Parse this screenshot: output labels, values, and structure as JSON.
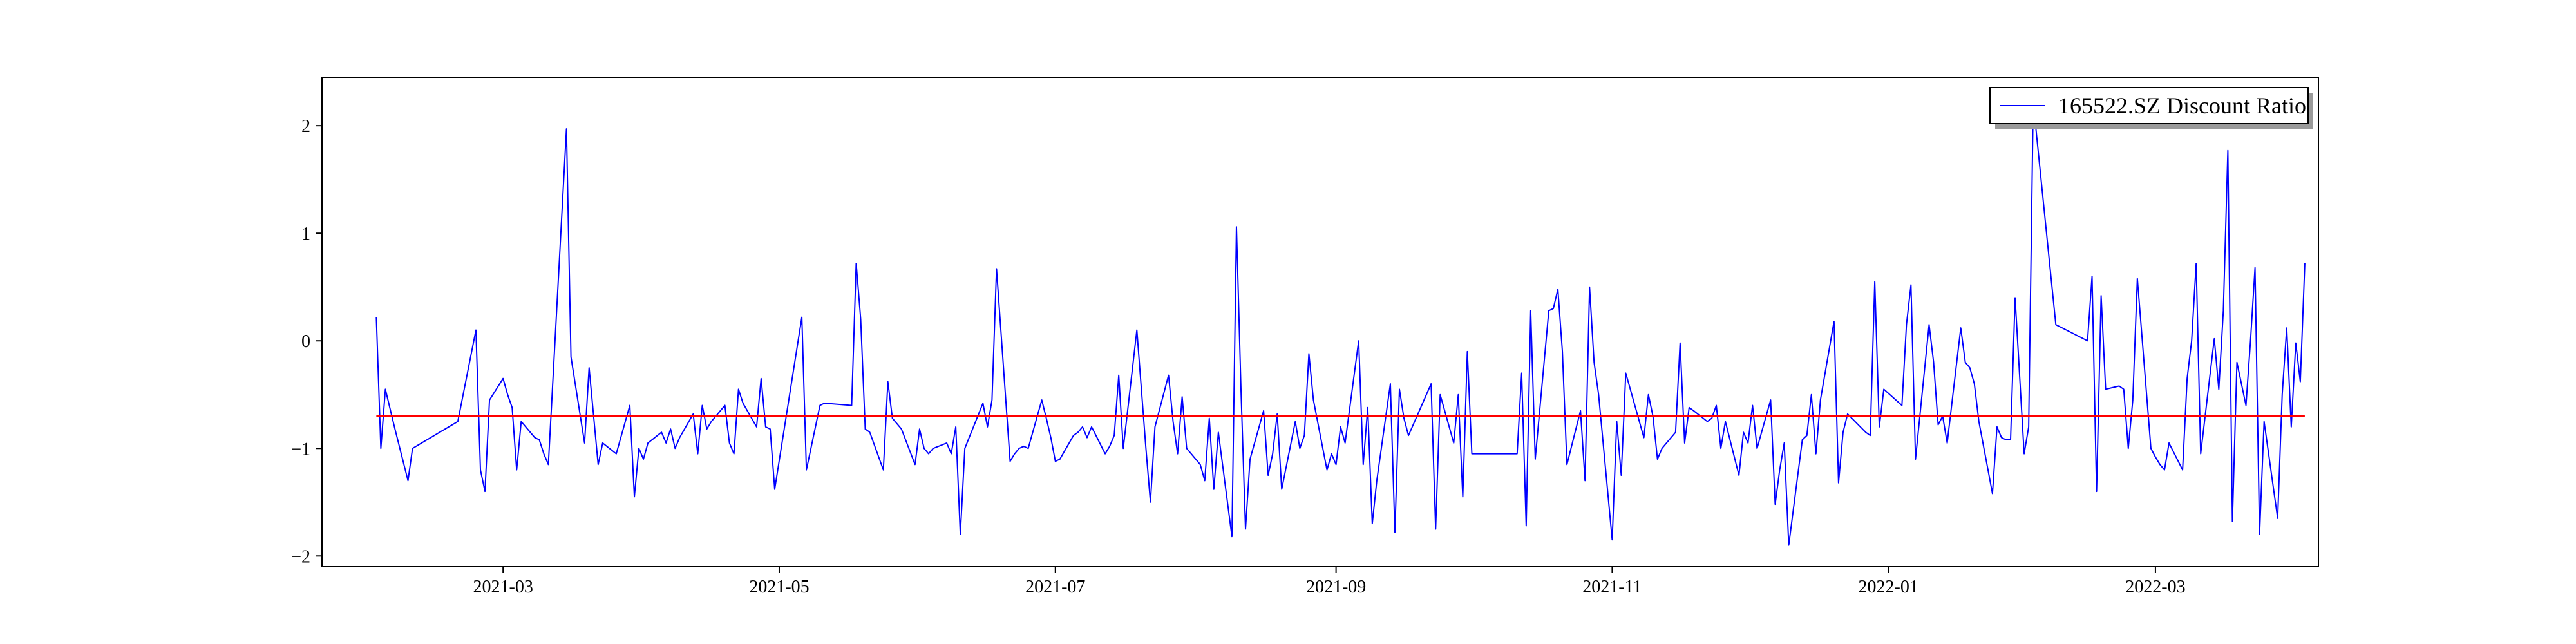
{
  "chart_data": {
    "type": "line",
    "title": "",
    "xlabel": "",
    "ylabel": "",
    "xlim": [
      "2021-01-20",
      "2022-04-06"
    ],
    "ylim": [
      -2.1,
      2.45
    ],
    "x_ticks": [
      "2021-03",
      "2021-05",
      "2021-07",
      "2021-09",
      "2021-11",
      "2022-01",
      "2022-03"
    ],
    "y_ticks": [
      -2,
      -1,
      0,
      1,
      2
    ],
    "grid": false,
    "legend": {
      "position": "top-right",
      "entries": [
        "165522.SZ Discount Ratio"
      ]
    },
    "series": [
      {
        "name": "165522.SZ Discount Ratio",
        "color": "#0000ff",
        "points": [
          [
            "2021-02-01",
            0.22
          ],
          [
            "2021-02-02",
            -1.0
          ],
          [
            "2021-02-03",
            -0.45
          ],
          [
            "2021-02-05",
            -0.8
          ],
          [
            "2021-02-08",
            -1.3
          ],
          [
            "2021-02-09",
            -1.0
          ],
          [
            "2021-02-19",
            -0.75
          ],
          [
            "2021-02-23",
            0.1
          ],
          [
            "2021-02-24",
            -1.2
          ],
          [
            "2021-02-25",
            -1.4
          ],
          [
            "2021-02-26",
            -0.55
          ],
          [
            "2021-03-01",
            -0.35
          ],
          [
            "2021-03-02",
            -0.5
          ],
          [
            "2021-03-03",
            -0.62
          ],
          [
            "2021-03-04",
            -1.2
          ],
          [
            "2021-03-05",
            -0.75
          ],
          [
            "2021-03-08",
            -0.9
          ],
          [
            "2021-03-09",
            -0.92
          ],
          [
            "2021-03-10",
            -1.05
          ],
          [
            "2021-03-11",
            -1.15
          ],
          [
            "2021-03-15",
            1.97
          ],
          [
            "2021-03-16",
            -0.15
          ],
          [
            "2021-03-19",
            -0.95
          ],
          [
            "2021-03-20",
            -0.25
          ],
          [
            "2021-03-22",
            -1.15
          ],
          [
            "2021-03-23",
            -0.95
          ],
          [
            "2021-03-26",
            -1.05
          ],
          [
            "2021-03-29",
            -0.6
          ],
          [
            "2021-03-30",
            -1.45
          ],
          [
            "2021-03-31",
            -1.0
          ],
          [
            "2021-04-01",
            -1.1
          ],
          [
            "2021-04-02",
            -0.95
          ],
          [
            "2021-04-05",
            -0.85
          ],
          [
            "2021-04-06",
            -0.95
          ],
          [
            "2021-04-07",
            -0.82
          ],
          [
            "2021-04-08",
            -1.0
          ],
          [
            "2021-04-09",
            -0.9
          ],
          [
            "2021-04-12",
            -0.68
          ],
          [
            "2021-04-13",
            -1.05
          ],
          [
            "2021-04-14",
            -0.6
          ],
          [
            "2021-04-15",
            -0.82
          ],
          [
            "2021-04-16",
            -0.75
          ],
          [
            "2021-04-19",
            -0.6
          ],
          [
            "2021-04-20",
            -0.95
          ],
          [
            "2021-04-21",
            -1.05
          ],
          [
            "2021-04-22",
            -0.45
          ],
          [
            "2021-04-23",
            -0.58
          ],
          [
            "2021-04-26",
            -0.8
          ],
          [
            "2021-04-27",
            -0.35
          ],
          [
            "2021-04-28",
            -0.8
          ],
          [
            "2021-04-29",
            -0.82
          ],
          [
            "2021-04-30",
            -1.38
          ],
          [
            "2021-05-06",
            0.22
          ],
          [
            "2021-05-07",
            -1.2
          ],
          [
            "2021-05-10",
            -0.6
          ],
          [
            "2021-05-11",
            -0.58
          ],
          [
            "2021-05-17",
            -0.6
          ],
          [
            "2021-05-18",
            0.72
          ],
          [
            "2021-05-19",
            0.2
          ],
          [
            "2021-05-20",
            -0.82
          ],
          [
            "2021-05-21",
            -0.85
          ],
          [
            "2021-05-24",
            -1.2
          ],
          [
            "2021-05-25",
            -0.38
          ],
          [
            "2021-05-26",
            -0.72
          ],
          [
            "2021-05-28",
            -0.82
          ],
          [
            "2021-05-31",
            -1.15
          ],
          [
            "2021-06-01",
            -0.82
          ],
          [
            "2021-06-02",
            -1.0
          ],
          [
            "2021-06-03",
            -1.05
          ],
          [
            "2021-06-04",
            -1.0
          ],
          [
            "2021-06-07",
            -0.95
          ],
          [
            "2021-06-08",
            -1.05
          ],
          [
            "2021-06-09",
            -0.8
          ],
          [
            "2021-06-10",
            -1.8
          ],
          [
            "2021-06-11",
            -1.0
          ],
          [
            "2021-06-15",
            -0.58
          ],
          [
            "2021-06-16",
            -0.8
          ],
          [
            "2021-06-17",
            -0.55
          ],
          [
            "2021-06-18",
            0.67
          ],
          [
            "2021-06-21",
            -1.12
          ],
          [
            "2021-06-22",
            -1.05
          ],
          [
            "2021-06-23",
            -1.0
          ],
          [
            "2021-06-24",
            -0.98
          ],
          [
            "2021-06-25",
            -1.0
          ],
          [
            "2021-06-28",
            -0.55
          ],
          [
            "2021-06-29",
            -0.72
          ],
          [
            "2021-06-30",
            -0.9
          ],
          [
            "2021-07-01",
            -1.12
          ],
          [
            "2021-07-02",
            -1.1
          ],
          [
            "2021-07-05",
            -0.88
          ],
          [
            "2021-07-06",
            -0.85
          ],
          [
            "2021-07-07",
            -0.8
          ],
          [
            "2021-07-08",
            -0.9
          ],
          [
            "2021-07-09",
            -0.8
          ],
          [
            "2021-07-12",
            -1.05
          ],
          [
            "2021-07-13",
            -0.98
          ],
          [
            "2021-07-14",
            -0.88
          ],
          [
            "2021-07-15",
            -0.32
          ],
          [
            "2021-07-16",
            -1.0
          ],
          [
            "2021-07-19",
            0.1
          ],
          [
            "2021-07-20",
            -0.45
          ],
          [
            "2021-07-21",
            -1.0
          ],
          [
            "2021-07-22",
            -1.5
          ],
          [
            "2021-07-23",
            -0.8
          ],
          [
            "2021-07-26",
            -0.32
          ],
          [
            "2021-07-27",
            -0.75
          ],
          [
            "2021-07-28",
            -1.05
          ],
          [
            "2021-07-29",
            -0.52
          ],
          [
            "2021-07-30",
            -1.0
          ],
          [
            "2021-08-02",
            -1.15
          ],
          [
            "2021-08-03",
            -1.3
          ],
          [
            "2021-08-04",
            -0.72
          ],
          [
            "2021-08-05",
            -1.38
          ],
          [
            "2021-08-06",
            -0.85
          ],
          [
            "2021-08-09",
            -1.82
          ],
          [
            "2021-08-10",
            1.06
          ],
          [
            "2021-08-11",
            -0.45
          ],
          [
            "2021-08-12",
            -1.75
          ],
          [
            "2021-08-13",
            -1.1
          ],
          [
            "2021-08-16",
            -0.65
          ],
          [
            "2021-08-17",
            -1.25
          ],
          [
            "2021-08-18",
            -1.05
          ],
          [
            "2021-08-19",
            -0.68
          ],
          [
            "2021-08-20",
            -1.38
          ],
          [
            "2021-08-23",
            -0.75
          ],
          [
            "2021-08-24",
            -1.0
          ],
          [
            "2021-08-25",
            -0.88
          ],
          [
            "2021-08-26",
            -0.12
          ],
          [
            "2021-08-27",
            -0.55
          ],
          [
            "2021-08-30",
            -1.2
          ],
          [
            "2021-08-31",
            -1.05
          ],
          [
            "2021-09-01",
            -1.15
          ],
          [
            "2021-09-02",
            -0.8
          ],
          [
            "2021-09-03",
            -0.95
          ],
          [
            "2021-09-06",
            0.0
          ],
          [
            "2021-09-07",
            -1.15
          ],
          [
            "2021-09-08",
            -0.62
          ],
          [
            "2021-09-09",
            -1.7
          ],
          [
            "2021-09-10",
            -1.3
          ],
          [
            "2021-09-13",
            -0.4
          ],
          [
            "2021-09-14",
            -1.78
          ],
          [
            "2021-09-15",
            -0.45
          ],
          [
            "2021-09-16",
            -0.72
          ],
          [
            "2021-09-17",
            -0.88
          ],
          [
            "2021-09-22",
            -0.4
          ],
          [
            "2021-09-23",
            -1.75
          ],
          [
            "2021-09-24",
            -0.5
          ],
          [
            "2021-09-27",
            -0.95
          ],
          [
            "2021-09-28",
            -0.5
          ],
          [
            "2021-09-29",
            -1.45
          ],
          [
            "2021-09-30",
            -0.1
          ],
          [
            "2021-10-01",
            -1.05
          ],
          [
            "2021-10-11",
            -1.05
          ],
          [
            "2021-10-12",
            -0.3
          ],
          [
            "2021-10-13",
            -1.72
          ],
          [
            "2021-10-14",
            0.28
          ],
          [
            "2021-10-15",
            -1.1
          ],
          [
            "2021-10-18",
            0.28
          ],
          [
            "2021-10-19",
            0.3
          ],
          [
            "2021-10-20",
            0.48
          ],
          [
            "2021-10-21",
            -0.1
          ],
          [
            "2021-10-22",
            -1.15
          ],
          [
            "2021-10-25",
            -0.65
          ],
          [
            "2021-10-26",
            -1.3
          ],
          [
            "2021-10-27",
            0.5
          ],
          [
            "2021-10-28",
            -0.2
          ],
          [
            "2021-10-29",
            -0.5
          ],
          [
            "2021-11-01",
            -1.85
          ],
          [
            "2021-11-02",
            -0.75
          ],
          [
            "2021-11-03",
            -1.25
          ],
          [
            "2021-11-04",
            -0.3
          ],
          [
            "2021-11-05",
            -0.45
          ],
          [
            "2021-11-08",
            -0.9
          ],
          [
            "2021-11-09",
            -0.5
          ],
          [
            "2021-11-10",
            -0.7
          ],
          [
            "2021-11-11",
            -1.1
          ],
          [
            "2021-11-12",
            -1.0
          ],
          [
            "2021-11-15",
            -0.85
          ],
          [
            "2021-11-16",
            -0.02
          ],
          [
            "2021-11-17",
            -0.95
          ],
          [
            "2021-11-18",
            -0.62
          ],
          [
            "2021-11-19",
            -0.65
          ],
          [
            "2021-11-22",
            -0.75
          ],
          [
            "2021-11-23",
            -0.72
          ],
          [
            "2021-11-24",
            -0.6
          ],
          [
            "2021-11-25",
            -1.0
          ],
          [
            "2021-11-26",
            -0.75
          ],
          [
            "2021-11-29",
            -1.25
          ],
          [
            "2021-11-30",
            -0.85
          ],
          [
            "2021-12-01",
            -0.95
          ],
          [
            "2021-12-02",
            -0.6
          ],
          [
            "2021-12-03",
            -1.0
          ],
          [
            "2021-12-06",
            -0.55
          ],
          [
            "2021-12-07",
            -1.52
          ],
          [
            "2021-12-08",
            -1.2
          ],
          [
            "2021-12-09",
            -0.95
          ],
          [
            "2021-12-10",
            -1.9
          ],
          [
            "2021-12-13",
            -0.92
          ],
          [
            "2021-12-14",
            -0.88
          ],
          [
            "2021-12-15",
            -0.5
          ],
          [
            "2021-12-16",
            -1.05
          ],
          [
            "2021-12-17",
            -0.55
          ],
          [
            "2021-12-20",
            0.18
          ],
          [
            "2021-12-21",
            -1.32
          ],
          [
            "2021-12-22",
            -0.85
          ],
          [
            "2021-12-23",
            -0.68
          ],
          [
            "2021-12-27",
            -0.85
          ],
          [
            "2021-12-28",
            -0.88
          ],
          [
            "2021-12-29",
            0.55
          ],
          [
            "2021-12-30",
            -0.8
          ],
          [
            "2021-12-31",
            -0.45
          ],
          [
            "2022-01-04",
            -0.6
          ],
          [
            "2022-01-05",
            0.15
          ],
          [
            "2022-01-06",
            0.52
          ],
          [
            "2022-01-07",
            -1.1
          ],
          [
            "2022-01-10",
            0.15
          ],
          [
            "2022-01-11",
            -0.2
          ],
          [
            "2022-01-12",
            -0.78
          ],
          [
            "2022-01-13",
            -0.7
          ],
          [
            "2022-01-14",
            -0.95
          ],
          [
            "2022-01-17",
            0.12
          ],
          [
            "2022-01-18",
            -0.2
          ],
          [
            "2022-01-19",
            -0.25
          ],
          [
            "2022-01-20",
            -0.4
          ],
          [
            "2022-01-21",
            -0.75
          ],
          [
            "2022-01-24",
            -1.42
          ],
          [
            "2022-01-25",
            -0.8
          ],
          [
            "2022-01-26",
            -0.9
          ],
          [
            "2022-01-27",
            -0.92
          ],
          [
            "2022-01-28",
            -0.92
          ],
          [
            "2022-01-29",
            0.4
          ],
          [
            "2022-01-31",
            -1.05
          ],
          [
            "2022-02-01",
            -0.8
          ],
          [
            "2022-02-02",
            2.22
          ],
          [
            "2022-02-07",
            0.15
          ],
          [
            "2022-02-14",
            0.0
          ],
          [
            "2022-02-15",
            0.6
          ],
          [
            "2022-02-16",
            -1.4
          ],
          [
            "2022-02-17",
            0.42
          ],
          [
            "2022-02-18",
            -0.45
          ],
          [
            "2022-02-21",
            -0.42
          ],
          [
            "2022-02-22",
            -0.45
          ],
          [
            "2022-02-23",
            -1.0
          ],
          [
            "2022-02-24",
            -0.55
          ],
          [
            "2022-02-25",
            0.58
          ],
          [
            "2022-02-28",
            -1.0
          ],
          [
            "2022-03-01",
            -1.08
          ],
          [
            "2022-03-02",
            -1.15
          ],
          [
            "2022-03-03",
            -1.2
          ],
          [
            "2022-03-04",
            -0.95
          ],
          [
            "2022-03-07",
            -1.2
          ],
          [
            "2022-03-08",
            -0.35
          ],
          [
            "2022-03-09",
            0.0
          ],
          [
            "2022-03-10",
            0.72
          ],
          [
            "2022-03-11",
            -1.05
          ],
          [
            "2022-03-14",
            0.02
          ],
          [
            "2022-03-15",
            -0.45
          ],
          [
            "2022-03-16",
            0.28
          ],
          [
            "2022-03-17",
            1.77
          ],
          [
            "2022-03-18",
            -1.68
          ],
          [
            "2022-03-19",
            -0.2
          ],
          [
            "2022-03-21",
            -0.6
          ],
          [
            "2022-03-22",
            0.0
          ],
          [
            "2022-03-23",
            0.68
          ],
          [
            "2022-03-24",
            -1.8
          ],
          [
            "2022-03-25",
            -0.75
          ],
          [
            "2022-03-28",
            -1.65
          ],
          [
            "2022-03-29",
            -0.5
          ],
          [
            "2022-03-30",
            0.12
          ],
          [
            "2022-03-31",
            -0.8
          ],
          [
            "2022-04-01",
            -0.02
          ],
          [
            "2022-04-02",
            -0.38
          ],
          [
            "2022-04-03",
            0.72
          ]
        ]
      }
    ],
    "reference_lines": [
      {
        "orientation": "horizontal",
        "y": -0.7,
        "x_from": "2021-02-01",
        "x_to": "2022-04-03",
        "color": "#ff0000"
      }
    ]
  }
}
